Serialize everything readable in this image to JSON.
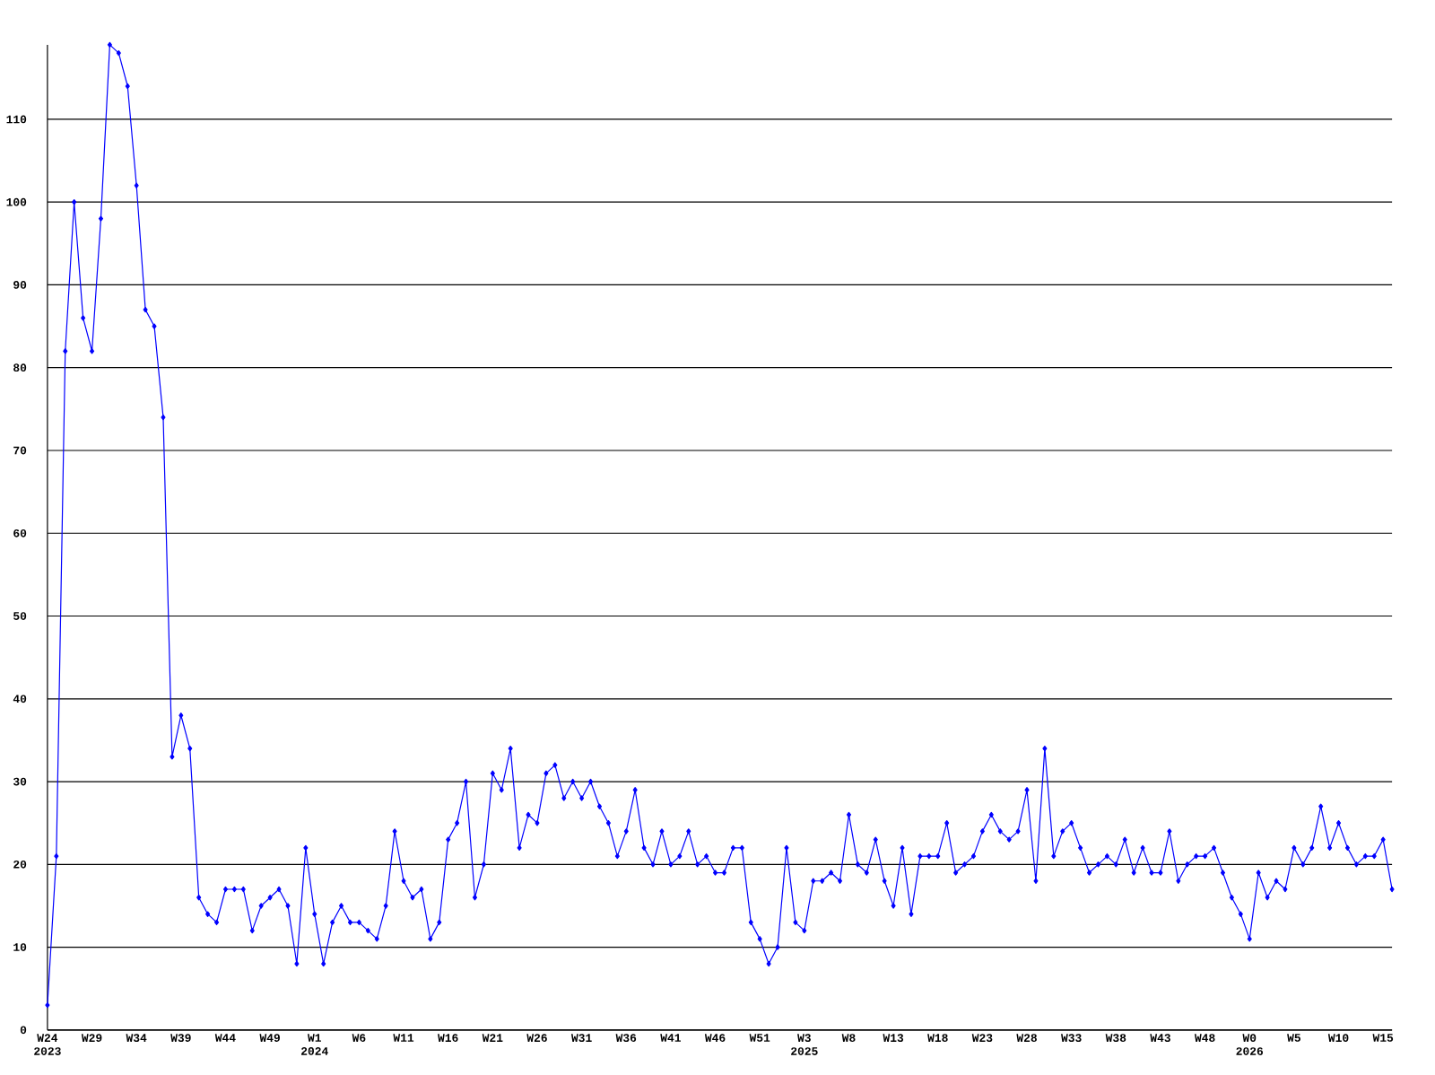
{
  "chart_data": {
    "type": "line",
    "color": "#0000ff",
    "marker": "diamond",
    "grid": "y",
    "ylim": [
      0,
      119
    ],
    "yticks": [
      0,
      10,
      20,
      30,
      40,
      50,
      60,
      70,
      80,
      90,
      100,
      110
    ],
    "categories": [
      "W24 2023",
      null,
      null,
      null,
      null,
      "W29",
      null,
      null,
      null,
      null,
      "W34",
      null,
      null,
      null,
      null,
      "W39",
      null,
      null,
      null,
      null,
      "W44",
      null,
      null,
      null,
      null,
      "W49",
      null,
      null,
      null,
      null,
      "W1 2024",
      null,
      null,
      null,
      null,
      "W6",
      null,
      null,
      null,
      null,
      "W11",
      null,
      null,
      null,
      null,
      "W16",
      null,
      null,
      null,
      null,
      "W21",
      null,
      null,
      null,
      null,
      "W26",
      null,
      null,
      null,
      null,
      "W31",
      null,
      null,
      null,
      null,
      "W36",
      null,
      null,
      null,
      null,
      "W41",
      null,
      null,
      null,
      null,
      "W46",
      null,
      null,
      null,
      null,
      "W51",
      null,
      null,
      null,
      null,
      "W3 2025",
      null,
      null,
      null,
      null,
      "W8",
      null,
      null,
      null,
      null,
      "W13",
      null,
      null,
      null,
      null,
      "W18",
      null,
      null,
      null,
      null,
      "W23",
      null,
      null,
      null,
      null,
      "W28",
      null,
      null,
      null,
      null,
      "W33",
      null,
      null,
      null,
      null,
      "W38",
      null,
      null,
      null,
      null,
      "W43",
      null,
      null,
      null,
      null,
      "W48",
      null,
      null,
      null,
      null,
      "W0 2026",
      null,
      null,
      null,
      null,
      "W5",
      null,
      null,
      null,
      null,
      "W10",
      null,
      null,
      null,
      null,
      "W15",
      null
    ],
    "values": [
      3,
      21,
      82,
      100,
      86,
      82,
      98,
      119,
      118,
      114,
      102,
      87,
      85,
      74,
      33,
      38,
      34,
      16,
      14,
      13,
      17,
      17,
      17,
      12,
      15,
      16,
      17,
      15,
      8,
      22,
      14,
      8,
      13,
      15,
      13,
      13,
      12,
      11,
      15,
      24,
      18,
      16,
      17,
      11,
      13,
      23,
      25,
      30,
      16,
      20,
      31,
      29,
      34,
      22,
      26,
      25,
      31,
      32,
      28,
      30,
      28,
      30,
      27,
      25,
      21,
      24,
      29,
      22,
      20,
      24,
      20,
      21,
      24,
      20,
      21,
      19,
      19,
      22,
      22,
      13,
      11,
      8,
      10,
      22,
      13,
      12,
      18,
      18,
      19,
      18,
      26,
      20,
      19,
      23,
      18,
      15,
      22,
      14,
      21,
      21,
      21,
      25,
      19,
      20,
      21,
      24,
      26,
      24,
      23,
      24,
      29,
      18,
      34,
      21,
      24,
      25,
      22,
      19,
      20,
      21,
      20,
      23,
      19,
      22,
      19,
      19,
      24,
      18,
      20,
      21,
      21,
      22,
      19,
      16,
      14,
      11,
      19,
      16,
      18,
      17,
      22,
      20,
      22,
      27,
      22,
      25,
      22,
      20,
      21,
      21,
      23,
      17
    ]
  }
}
